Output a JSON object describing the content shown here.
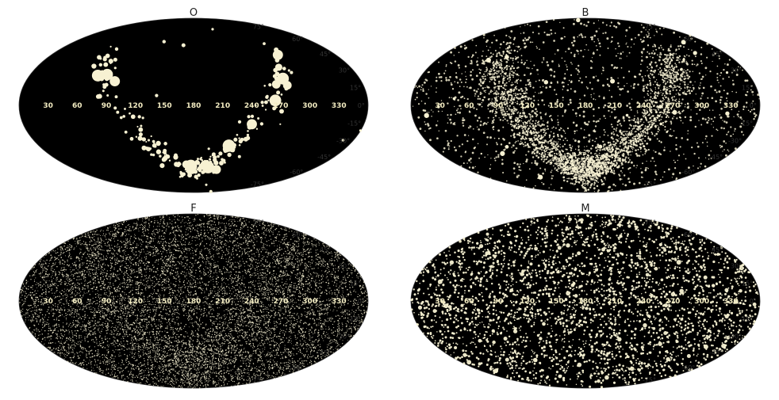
{
  "chart_data": [
    {
      "type": "scatter",
      "projection": "mollweide",
      "title": "O",
      "point_color": "#f7f1d2",
      "background": "#000000",
      "density": "sparse",
      "marker_sizes": "large, varying",
      "feature": "stars concentrated in a narrow U-shaped band (Gould belt / galactic plane) with large markers",
      "lon_ticks": [
        "330",
        "300",
        "270",
        "240",
        "210",
        "180",
        "150",
        "120",
        "90",
        "60",
        "30"
      ],
      "lat_ticks": [
        "75°",
        "60°",
        "45°",
        "30°",
        "15°",
        "0°",
        "-15°",
        "-30°",
        "-45°",
        "-60°",
        "-75°"
      ],
      "grid": false
    },
    {
      "type": "scatter",
      "projection": "mollweide",
      "title": "B",
      "point_color": "#f7f1d2",
      "background": "#000000",
      "density": "dense along band",
      "marker_sizes": "small",
      "feature": "many stars forming a broad bright U-shaped band plus scattered field stars",
      "lon_ticks": [
        "330",
        "300",
        "270",
        "240",
        "210",
        "180",
        "150",
        "120",
        "90",
        "60",
        "30"
      ],
      "lat_ticks": [
        "75°",
        "60°",
        "45°",
        "30°",
        "15°",
        "0°",
        "-15°",
        "-30°",
        "-45°",
        "-60°",
        "-75°"
      ],
      "grid": false
    },
    {
      "type": "scatter",
      "projection": "mollweide",
      "title": "F",
      "point_color": "#f7f1d2",
      "background": "#000000",
      "density": "very dense, nearly uniform",
      "marker_sizes": "tiny",
      "feature": "nearly uniform sky distribution with faint band structure",
      "lon_ticks": [
        "330",
        "300",
        "270",
        "240",
        "210",
        "180",
        "150",
        "120",
        "90",
        "60",
        "30"
      ],
      "lat_ticks": [
        "75°",
        "60°",
        "45°",
        "30°",
        "15°",
        "0°",
        "-15°",
        "-30°",
        "-45°",
        "-60°",
        "-75°"
      ],
      "grid": false
    },
    {
      "type": "scatter",
      "projection": "mollweide",
      "title": "M",
      "point_color": "#f7f1d2",
      "background": "#000000",
      "density": "uniform",
      "marker_sizes": "small to medium",
      "feature": "uniform isotropic distribution of stars across the sky",
      "lon_ticks": [
        "330",
        "300",
        "270",
        "240",
        "210",
        "180",
        "150",
        "120",
        "90",
        "60",
        "30"
      ],
      "lat_ticks": [
        "75°",
        "60°",
        "45°",
        "30°",
        "15°",
        "0°",
        "-15°",
        "-30°",
        "-45°",
        "-60°",
        "-75°"
      ],
      "grid": false
    }
  ]
}
